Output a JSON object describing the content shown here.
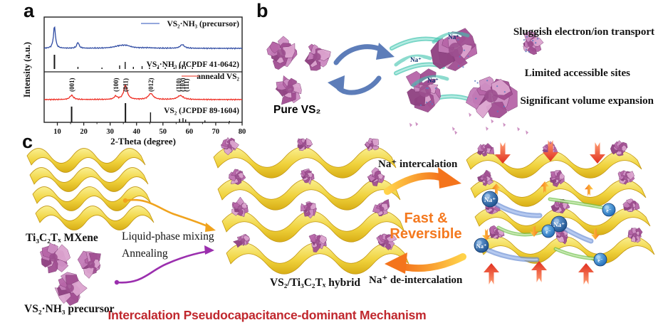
{
  "panel_labels": {
    "a": "a",
    "b": "b",
    "c": "c"
  },
  "chart_data": {
    "type": "line",
    "title": "",
    "xlabel": "2-Theta (degree)",
    "ylabel": "Intensity (a.u.)",
    "x_range": [
      5,
      80
    ],
    "x_ticks": [
      10,
      20,
      30,
      40,
      50,
      60,
      70,
      80
    ],
    "grid": false,
    "legend_position": "top-right-inside",
    "panels": [
      {
        "series_label": "VS₂·NH₃ (precursor)",
        "series_color": "#2f4ba3",
        "legend_color": "#93a7dc",
        "peaks": [
          {
            "x": 8.9,
            "i": 1.0,
            "w": 0.45
          },
          {
            "x": 17.8,
            "i": 0.27,
            "w": 0.5
          },
          {
            "x": 33.8,
            "i": 0.1,
            "w": 2.8
          },
          {
            "x": 36.2,
            "i": 0.08,
            "w": 2.0
          },
          {
            "x": 44.0,
            "i": 0.02,
            "w": 3.0
          },
          {
            "x": 57.3,
            "i": 0.17,
            "w": 0.9
          }
        ],
        "ref_label": "VS₂·NH₃ (JCPDF 41-0642)",
        "ref_sticks": [
          {
            "x": 8.9,
            "i": 1.0
          },
          {
            "x": 17.8,
            "i": 0.15
          },
          {
            "x": 26.9,
            "i": 0.1
          },
          {
            "x": 33.6,
            "i": 0.25
          },
          {
            "x": 35.7,
            "i": 0.5
          },
          {
            "x": 38.8,
            "i": 0.15
          },
          {
            "x": 42.1,
            "i": 0.2
          },
          {
            "x": 44.9,
            "i": 0.1
          },
          {
            "x": 48.2,
            "i": 0.15
          },
          {
            "x": 50.9,
            "i": 0.1
          },
          {
            "x": 54.2,
            "i": 0.1
          },
          {
            "x": 56.3,
            "i": 0.3
          },
          {
            "x": 57.4,
            "i": 0.3
          },
          {
            "x": 58.5,
            "i": 0.2
          },
          {
            "x": 61.2,
            "i": 0.1
          }
        ]
      },
      {
        "series_label": "anneald VS₂",
        "series_color": "#ee2c22",
        "legend_color": "#f4948a",
        "peaks": [
          {
            "x": 15.4,
            "i": 0.3,
            "w": 0.8
          },
          {
            "x": 32.1,
            "i": 0.22,
            "w": 0.7
          },
          {
            "x": 35.8,
            "i": 1.0,
            "w": 0.8
          },
          {
            "x": 45.4,
            "i": 0.42,
            "w": 1.1
          },
          {
            "x": 56.6,
            "i": 0.28,
            "w": 1.3
          }
        ],
        "peak_labels": [
          {
            "x": 15.4,
            "label": "(001)"
          },
          {
            "x": 32.1,
            "label": "(100)"
          },
          {
            "x": 35.8,
            "label": "(011)"
          },
          {
            "x": 45.4,
            "label": "(012)"
          },
          {
            "x": 55.9,
            "label": "(110)"
          },
          {
            "x": 57.3,
            "label": "(103)"
          },
          {
            "x": 58.8,
            "label": "(111)"
          }
        ],
        "ref_label": "VS₂ (JCPDF 89-1604)",
        "ref_sticks": [
          {
            "x": 15.4,
            "i": 0.82
          },
          {
            "x": 35.8,
            "i": 1.0
          },
          {
            "x": 45.3,
            "i": 0.52
          },
          {
            "x": 56.3,
            "i": 0.18
          },
          {
            "x": 57.6,
            "i": 0.22
          },
          {
            "x": 58.6,
            "i": 0.15
          },
          {
            "x": 65.9,
            "i": 0.1
          },
          {
            "x": 75.2,
            "i": 0.07
          }
        ]
      }
    ]
  },
  "panel_b": {
    "pure_label": "Pure VS₂",
    "pure_label_color": "#c565b5",
    "ion_label": "Na⁺",
    "issues": [
      "Sluggish electron/ion transport",
      "Limited accessible sites",
      "Significant volume expansion"
    ]
  },
  "panel_c": {
    "mxene_label": "Ti₃C₂Tₓ MXene",
    "precursor_label": "VS₂·NH₃ precursor",
    "process_steps": [
      "Liquid-phase mixing",
      "Annealing"
    ],
    "hybrid_label": "VS₂/Ti₃C₂Tₓ hybrid",
    "intercalation_label": "Na⁺ intercalation",
    "deintercalation_label": "Na⁺ de-intercalation",
    "fast_reversible": "Fast & Reversible",
    "fast_reversible_color": "#f4791f",
    "ion_label": "Na⁺",
    "electron_label": "e⁻",
    "title": "Intercalation Pseudocapacitance-dominant Mechanism",
    "title_color": "#c0272d"
  },
  "colors": {
    "mxene_yellow": "#f2cd2e",
    "vs2_flower_pink": "#c06ab4",
    "cycle_arrow_blue": "#5d7db9",
    "teal_streak": "#3fc3ae",
    "process_arrow_yellow": "#f0a31e",
    "process_arrow_purple": "#9b2fae",
    "big_arrow_orange": "#f4741c",
    "stress_arrow_red": "#e8392c",
    "na_sphere_blue": "#1d4f93",
    "electron_sphere_blue": "#2272c3",
    "electron_path_green": "#6abf45",
    "ion_path_blue": "#6b8fd4"
  }
}
